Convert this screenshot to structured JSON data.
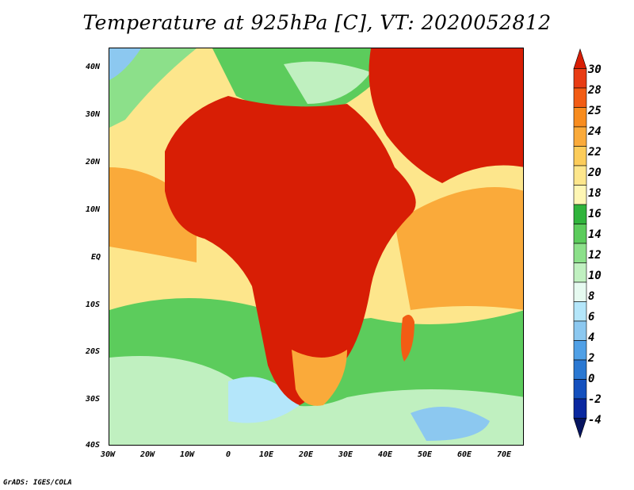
{
  "title": "Temperature at 925hPa [C], VT: 2020052812",
  "credit": "GrADS: IGES/COLA",
  "lat_labels": [
    "40N",
    "30N",
    "20N",
    "10N",
    "EQ",
    "10S",
    "20S",
    "30S",
    "40S"
  ],
  "lon_labels": [
    "30W",
    "20W",
    "10W",
    "0",
    "10E",
    "20E",
    "30E",
    "40E",
    "50E",
    "60E",
    "70E"
  ],
  "colorbar": {
    "labels": [
      "30",
      "28",
      "25",
      "24",
      "22",
      "20",
      "18",
      "16",
      "14",
      "12",
      "10",
      "8",
      "6",
      "4",
      "2",
      "0",
      "-2",
      "-4"
    ],
    "colors": [
      "#d81e05",
      "#e83c14",
      "#f25c14",
      "#f88c1e",
      "#faaa3a",
      "#fccc5a",
      "#fde68c",
      "#fef6b4",
      "#30b43c",
      "#5ccc5c",
      "#8ce08a",
      "#c0f0c0",
      "#e6faf0",
      "#b4e6fa",
      "#8cc8f0",
      "#50a0e6",
      "#2a78d2",
      "#1450be",
      "#0a28a0",
      "#061460"
    ]
  }
}
